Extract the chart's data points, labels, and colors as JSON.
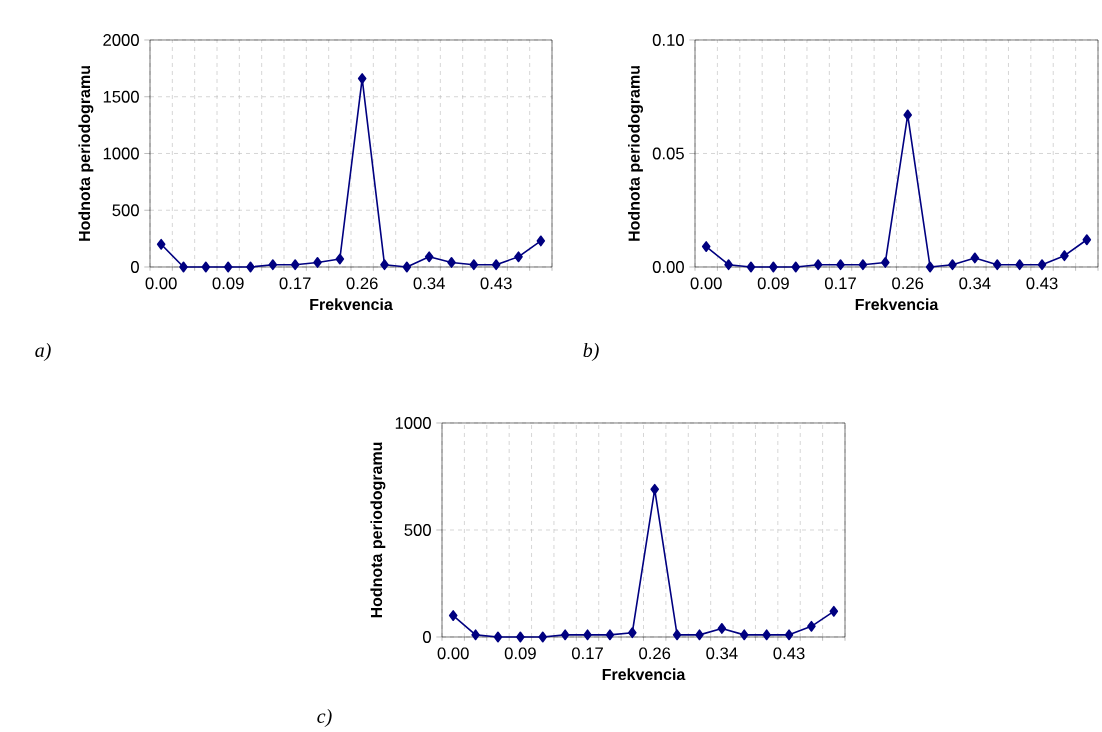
{
  "chart_data": [
    {
      "type": "line",
      "xlabel": "Frekvencia",
      "ylabel": "Hodnota periodogramu",
      "annotations": [
        "a)"
      ],
      "categories": [
        "0.00",
        null,
        null,
        "0.09",
        null,
        null,
        "0.17",
        null,
        null,
        "0.26",
        null,
        null,
        "0.34",
        null,
        null,
        "0.43",
        null,
        null
      ],
      "series": [
        {
          "color": "#000080",
          "values": [
            200,
            0,
            0,
            0,
            0,
            20,
            20,
            40,
            70,
            1660,
            20,
            0,
            90,
            40,
            20,
            20,
            90,
            230
          ]
        }
      ],
      "ylim": [
        0,
        2000
      ],
      "yticks": [
        0,
        500,
        1000,
        1500,
        2000
      ],
      "grid": true,
      "marker": "diamond",
      "line_style": "solid"
    },
    {
      "type": "line",
      "xlabel": "Frekvencia",
      "ylabel": "Hodnota periodogramu",
      "annotations": [
        "b)"
      ],
      "categories": [
        "0.00",
        null,
        null,
        "0.09",
        null,
        null,
        "0.17",
        null,
        null,
        "0.26",
        null,
        null,
        "0.34",
        null,
        null,
        "0.43",
        null,
        null
      ],
      "series": [
        {
          "color": "#000080",
          "values": [
            0.009,
            0.001,
            0,
            0,
            0,
            0.001,
            0.001,
            0.001,
            0.002,
            0.067,
            0,
            0.001,
            0.004,
            0.001,
            0.001,
            0.001,
            0.005,
            0.012
          ]
        }
      ],
      "ylim": [
        0,
        0.1
      ],
      "yticks": [
        {
          "value": 0,
          "label": "0.00"
        },
        {
          "value": 0.05,
          "label": "0.05"
        },
        {
          "value": 0.1,
          "label": "0.10"
        }
      ],
      "grid": true,
      "marker": "diamond",
      "line_style": "solid"
    },
    {
      "type": "line",
      "xlabel": "Frekvencia",
      "ylabel": "Hodnota periodogramu",
      "annotations": [
        "c)"
      ],
      "categories": [
        "0.00",
        null,
        null,
        "0.09",
        null,
        null,
        "0.17",
        null,
        null,
        "0.26",
        null,
        null,
        "0.34",
        null,
        null,
        "0.43",
        null,
        null
      ],
      "series": [
        {
          "color": "#000080",
          "values": [
            100,
            10,
            0,
            0,
            0,
            10,
            10,
            10,
            20,
            690,
            10,
            10,
            40,
            10,
            10,
            10,
            50,
            120
          ]
        }
      ],
      "ylim": [
        0,
        1000
      ],
      "yticks": [
        0,
        500,
        1000
      ],
      "grid": true,
      "marker": "diamond",
      "line_style": "solid"
    }
  ]
}
